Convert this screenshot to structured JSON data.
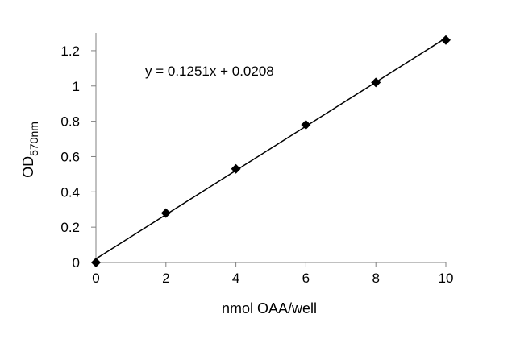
{
  "chart_data": {
    "type": "scatter",
    "title": "",
    "xlabel": "nmol OAA/well",
    "ylabel": {
      "main": "OD",
      "subscript": "570nm"
    },
    "xlim": [
      0,
      10
    ],
    "ylim": [
      0,
      1.2
    ],
    "x_ticks": [
      0,
      2,
      4,
      6,
      8,
      10
    ],
    "x_tick_labels": [
      "0",
      "2",
      "4",
      "6",
      "8",
      "10"
    ],
    "y_ticks": [
      0,
      0.2,
      0.4,
      0.6,
      0.8,
      1,
      1.2
    ],
    "y_tick_labels": [
      "0",
      "0.2",
      "0.4",
      "0.6",
      "0.8",
      "1",
      "1.2"
    ],
    "grid": false,
    "legend": "none",
    "series": [
      {
        "marker": "diamond",
        "x": [
          0,
          2,
          4,
          6,
          8,
          10
        ],
        "y": [
          0.0,
          0.28,
          0.53,
          0.78,
          1.02,
          1.26
        ]
      }
    ],
    "trendline": {
      "type": "linear",
      "slope": 0.1251,
      "intercept": 0.0208,
      "equation": "y = 0.1251x + 0.0208"
    },
    "colors": {
      "line": "#000000",
      "marker": "#000000",
      "axis": "#808080"
    }
  }
}
